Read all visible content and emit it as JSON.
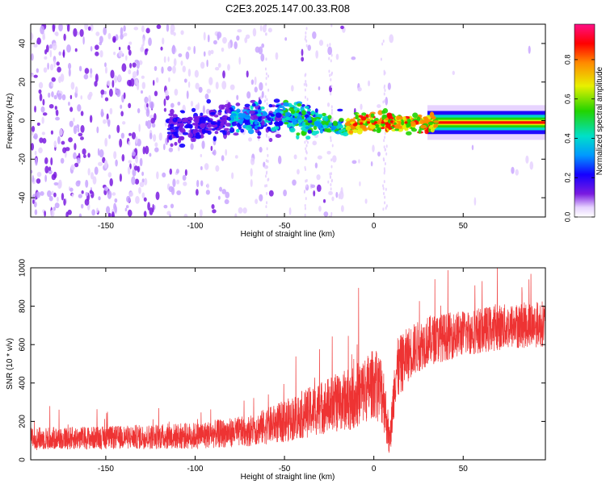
{
  "title": "C2E3.2025.147.00.33.R08",
  "chart_data": [
    {
      "type": "heatmap",
      "xlabel": "Height of straight line (km)",
      "ylabel": "Frequency (Hz)",
      "xlim": [
        -192,
        96
      ],
      "ylim": [
        -50,
        50
      ],
      "xticks": [
        -150,
        -100,
        -50,
        0,
        50
      ],
      "yticks": [
        -40,
        -20,
        0,
        20,
        40
      ],
      "colorbar": {
        "label": "Normalized spectral amplitude",
        "range": [
          0.0,
          0.98
        ],
        "ticks": [
          0.0,
          0.2,
          0.4,
          0.6,
          0.8
        ],
        "colormap": [
          "#ffffff",
          "#e6d2ff",
          "#7a1be0",
          "#1500ff",
          "#0099ff",
          "#00e0c8",
          "#22d400",
          "#e8f000",
          "#ff8a00",
          "#ff0000",
          "#ff0f86"
        ]
      },
      "ridge": {
        "description_points": [
          {
            "x": -112,
            "y": -3
          },
          {
            "x": -95,
            "y": -2
          },
          {
            "x": -85,
            "y": 1
          },
          {
            "x": -70,
            "y": 2
          },
          {
            "x": -60,
            "y": 0
          },
          {
            "x": -50,
            "y": 2
          },
          {
            "x": -40,
            "y": 1
          },
          {
            "x": -30,
            "y": -2
          },
          {
            "x": -20,
            "y": -3
          },
          {
            "x": -10,
            "y": -2
          },
          {
            "x": 0,
            "y": -1
          },
          {
            "x": 10,
            "y": -1
          },
          {
            "x": 30,
            "y": -1
          },
          {
            "x": 60,
            "y": -1
          },
          {
            "x": 96,
            "y": -1
          }
        ],
        "peak_amplitude_region": {
          "x_from": -15,
          "x_to": 96
        }
      },
      "grid": false,
      "legend": "colorbar-right"
    },
    {
      "type": "line",
      "xlabel": "Height of straight line (km)",
      "ylabel": "SNR (10 * v/v)",
      "xlim": [
        -192,
        96
      ],
      "ylim": [
        0,
        1000
      ],
      "xticks": [
        -150,
        -100,
        -50,
        0,
        50
      ],
      "yticks": [
        0,
        200,
        400,
        600,
        800,
        1000
      ],
      "color": "#ee3333",
      "trend": {
        "x": [
          -192,
          -150,
          -100,
          -70,
          -50,
          -30,
          -10,
          0,
          5,
          9,
          12,
          20,
          30,
          50,
          70,
          96
        ],
        "mean": [
          110,
          115,
          125,
          150,
          200,
          270,
          330,
          400,
          360,
          80,
          450,
          560,
          620,
          660,
          690,
          710
        ],
        "spread": [
          60,
          60,
          70,
          80,
          110,
          140,
          170,
          180,
          190,
          80,
          170,
          140,
          130,
          120,
          120,
          120
        ]
      },
      "grid": false,
      "legend": "none"
    }
  ]
}
